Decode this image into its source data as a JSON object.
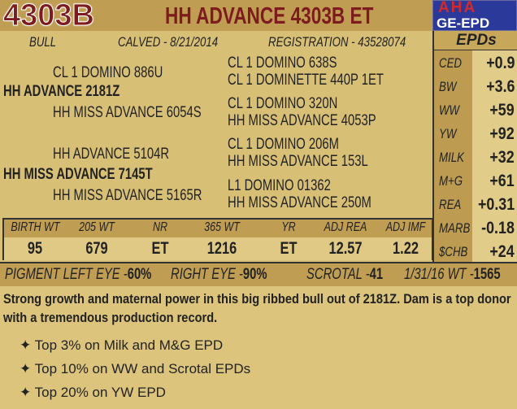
{
  "header": {
    "lot_number": "4303B",
    "title": "HH ADVANCE 4303B ET",
    "logo": "AHA GE-EPD"
  },
  "info": {
    "sex": "BULL",
    "calved_label": "CALVED",
    "calved": "8/21/2014",
    "registration_label": "REGISTRATION",
    "registration": "43528074"
  },
  "pedigree": {
    "sire": "HH ADVANCE 2181Z",
    "sire_sire": "CL 1 DOMINO 886U",
    "sire_dam": "HH MISS ADVANCE 6054S",
    "sss": "CL 1 DOMINO 638S",
    "ssd": "CL 1 DOMINETTE 440P 1ET",
    "sds": "CL 1 DOMINO 320N",
    "sdd": "HH MISS ADVANCE 4053P",
    "dam": "HH MISS ADVANCE 7145T",
    "dam_sire": "HH ADVANCE 5104R",
    "dam_dam": "HH MISS ADVANCE 5165R",
    "dss": "CL 1 DOMINO 206M",
    "dsd": "HH MISS ADVANCE 153L",
    "dds": "L1 DOMINO 01362",
    "ddd": "HH MISS ADVANCE 250M"
  },
  "epds": {
    "title": "EPDs",
    "rows": [
      {
        "label": "CED",
        "value": "+0.9"
      },
      {
        "label": "BW",
        "value": "+3.6"
      },
      {
        "label": "WW",
        "value": "+59"
      },
      {
        "label": "YW",
        "value": "+92"
      },
      {
        "label": "MILK",
        "value": "+32"
      },
      {
        "label": "M+G",
        "value": "+61"
      },
      {
        "label": "REA",
        "value": "+0.31"
      },
      {
        "label": "MARB",
        "value": "-0.18"
      },
      {
        "label": "$CHB",
        "value": "+24"
      }
    ]
  },
  "performance": {
    "columns": [
      {
        "header": "BIRTH WT",
        "value": "95"
      },
      {
        "header": "205 WT",
        "value": "679"
      },
      {
        "header": "NR",
        "value": "ET"
      },
      {
        "header": "365 WT",
        "value": "1216"
      },
      {
        "header": "YR",
        "value": "ET"
      },
      {
        "header": "ADJ REA",
        "value": "12.57"
      },
      {
        "header": "ADJ IMF",
        "value": "1.22"
      }
    ]
  },
  "pigment": {
    "left_label": "PIGMENT  LEFT EYE -",
    "left": "60%",
    "right_label": "RIGHT EYE -",
    "right": "90%",
    "scrotal_label": "SCROTAL -",
    "scrotal": "41",
    "wt_label": "1/31/16 WT -",
    "wt": "1565"
  },
  "description": {
    "text": "Strong growth and maternal power in this big ribbed bull out of 2181Z.  Dam is a top donor with a tremendous production record.",
    "bullets": [
      "Top 3% on Milk and M&G EPD",
      "Top 10% on WW and Scrotal EPDs",
      "Top 20% on YW EPD"
    ],
    "bullet_icon": "four-point-star"
  }
}
